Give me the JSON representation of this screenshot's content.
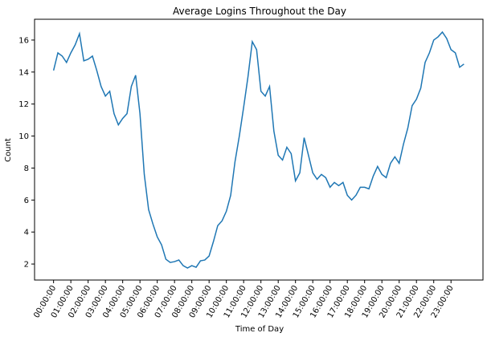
{
  "chart_data": {
    "type": "line",
    "title": "Average Logins Throughout the Day",
    "xlabel": "Time of Day",
    "ylabel": "Count",
    "x_tick_labels": [
      "00:00:00",
      "01:00:00",
      "02:00:00",
      "03:00:00",
      "04:00:00",
      "05:00:00",
      "06:00:00",
      "07:00:00",
      "08:00:00",
      "09:00:00",
      "10:00:00",
      "11:00:00",
      "12:00:00",
      "13:00:00",
      "14:00:00",
      "15:00:00",
      "16:00:00",
      "17:00:00",
      "18:00:00",
      "19:00:00",
      "20:00:00",
      "21:00:00",
      "22:00:00",
      "23:00:00"
    ],
    "y_ticks": [
      2,
      4,
      6,
      8,
      10,
      12,
      14,
      16
    ],
    "ylim": [
      1.0,
      17.3
    ],
    "xlim_hours": [
      -1.1,
      24.85
    ],
    "grid": false,
    "color": "#1f77b4",
    "interval_minutes": 15,
    "values": [
      14.1,
      15.2,
      15.0,
      14.6,
      15.2,
      15.7,
      16.4,
      14.7,
      14.8,
      15.0,
      14.1,
      13.1,
      12.5,
      12.8,
      11.4,
      10.7,
      11.1,
      11.4,
      13.1,
      13.8,
      11.4,
      7.6,
      5.4,
      4.5,
      3.7,
      3.2,
      2.3,
      2.1,
      2.15,
      2.25,
      1.9,
      1.75,
      1.9,
      1.8,
      2.2,
      2.25,
      2.5,
      3.4,
      4.4,
      4.7,
      5.3,
      6.3,
      8.4,
      10.0,
      11.8,
      13.7,
      15.9,
      15.4,
      12.8,
      12.5,
      13.1,
      10.3,
      8.8,
      8.5,
      9.3,
      8.9,
      7.2,
      7.7,
      9.9,
      8.8,
      7.7,
      7.3,
      7.6,
      7.4,
      6.8,
      7.1,
      6.9,
      7.1,
      6.3,
      6.0,
      6.3,
      6.8,
      6.8,
      6.7,
      7.5,
      8.1,
      7.6,
      7.4,
      8.3,
      8.7,
      8.3,
      9.5,
      10.5,
      11.9,
      12.3,
      13.0,
      14.6,
      15.2,
      16.0,
      16.2,
      16.5,
      16.1,
      15.4,
      15.2,
      14.3,
      14.5
    ]
  }
}
